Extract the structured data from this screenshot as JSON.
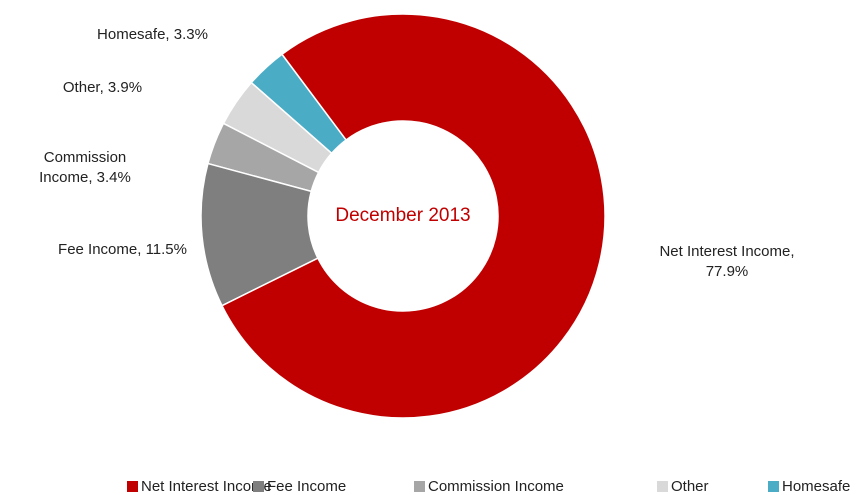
{
  "chart_data": {
    "type": "donut",
    "title": "December 2013",
    "categories": [
      "Net Interest Income",
      "Fee Income",
      "Commission Income",
      "Other",
      "Homesafe"
    ],
    "values": [
      77.9,
      11.5,
      3.4,
      3.9,
      3.3
    ],
    "value_labels": [
      "Net Interest Income, 77.9%",
      "Fee Income, 11.5%",
      "Commission Income, 3.4%",
      "Other, 3.9%",
      "Homesafe, 3.3%"
    ],
    "colors": [
      "#c00000",
      "#7f7f7f",
      "#a6a6a6",
      "#d9d9d9",
      "#4bacc6"
    ],
    "legend": "bottom"
  }
}
